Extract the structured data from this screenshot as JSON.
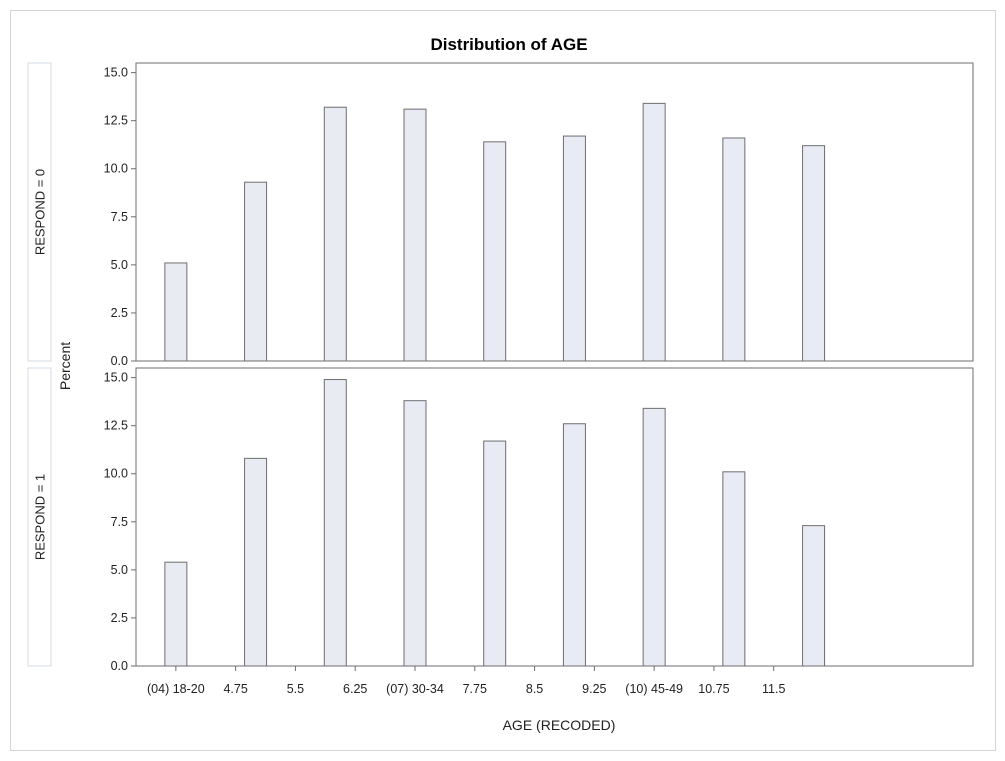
{
  "chart_data": {
    "type": "bar",
    "title": "Distribution of AGE",
    "xlabel": "AGE (RECODED)",
    "ylabel": "Percent",
    "xlim": [
      3.5,
      14
    ],
    "ylim": [
      0,
      15.5
    ],
    "x_ticks": [
      {
        "value": 4,
        "label": "(04) 18-20"
      },
      {
        "value": 4.75,
        "label": "4.75"
      },
      {
        "value": 5.5,
        "label": "5.5"
      },
      {
        "value": 6.25,
        "label": "6.25"
      },
      {
        "value": 7,
        "label": "(07) 30-34"
      },
      {
        "value": 7.75,
        "label": "7.75"
      },
      {
        "value": 8.5,
        "label": "8.5"
      },
      {
        "value": 9.25,
        "label": "9.25"
      },
      {
        "value": 10,
        "label": "(10) 45-49"
      },
      {
        "value": 10.75,
        "label": "10.75"
      },
      {
        "value": 11.5,
        "label": "11.5"
      }
    ],
    "y_ticks": [
      "0.0",
      "2.5",
      "5.0",
      "7.5",
      "10.0",
      "12.5",
      "15.0"
    ],
    "panels": [
      {
        "label": "RESPOND = 0",
        "x": [
          4,
          5,
          6,
          7,
          8,
          9,
          10,
          11,
          12
        ],
        "values": [
          5.1,
          9.3,
          13.2,
          13.1,
          11.4,
          11.7,
          13.4,
          11.6,
          11.2
        ]
      },
      {
        "label": "RESPOND = 1",
        "x": [
          4,
          5,
          6,
          7,
          8,
          9,
          10,
          11,
          12
        ],
        "values": [
          5.4,
          10.8,
          14.9,
          13.8,
          11.7,
          12.6,
          13.4,
          10.1,
          7.3
        ]
      }
    ],
    "colors": {
      "bar_fill": "#e8ebf3",
      "bar_stroke": "#6e6e6e",
      "axis": "#6e6e6e",
      "strip_border": "#d6dbe6"
    },
    "grid": false,
    "legend": "none"
  }
}
